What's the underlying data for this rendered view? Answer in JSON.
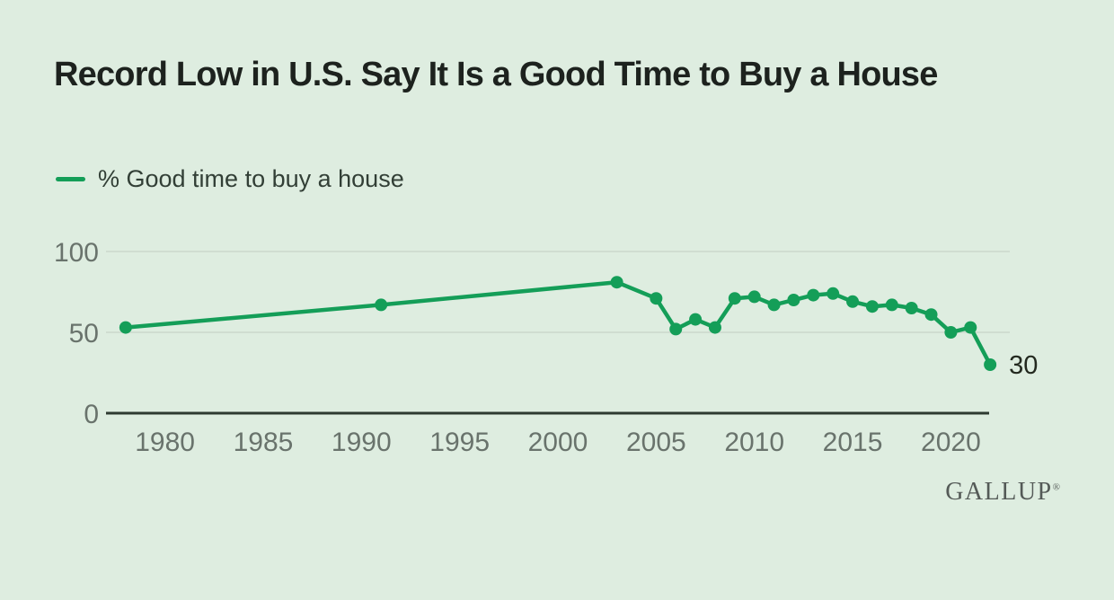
{
  "page": {
    "background_color": "#deede0",
    "title": "Record Low in U.S. Say It Is a Good Time to Buy a House"
  },
  "legend": {
    "label": "% Good time to buy a house"
  },
  "brand": {
    "wordmark": "GALLUP",
    "registered_mark": "®"
  },
  "chart_data": {
    "type": "line",
    "title": "Record Low in U.S. Say It Is a Good Time to Buy a House",
    "series_name": "% Good time to buy a house",
    "x": [
      1978,
      1991,
      2003,
      2005,
      2006,
      2007,
      2008,
      2009,
      2010,
      2011,
      2012,
      2013,
      2014,
      2015,
      2016,
      2017,
      2018,
      2019,
      2020,
      2021,
      2022
    ],
    "values": [
      53,
      67,
      81,
      71,
      52,
      58,
      53,
      71,
      72,
      67,
      70,
      73,
      74,
      69,
      66,
      67,
      65,
      61,
      50,
      53,
      30
    ],
    "xticks": [
      1980,
      1985,
      1990,
      1995,
      2000,
      2005,
      2010,
      2015,
      2020
    ],
    "yticks": [
      0,
      50,
      100
    ],
    "xlim": [
      1977,
      2023
    ],
    "ylim": [
      0,
      100
    ],
    "grid": "horizontal",
    "legend_position": "top-left",
    "annotation": {
      "text": "30",
      "x": 2022,
      "y": 30
    },
    "colors": {
      "series": "#149e58",
      "grid": "#cbd8cc",
      "axis": "#2e3a31",
      "tick_label": "#69736c",
      "annotation": "#23291f"
    }
  }
}
